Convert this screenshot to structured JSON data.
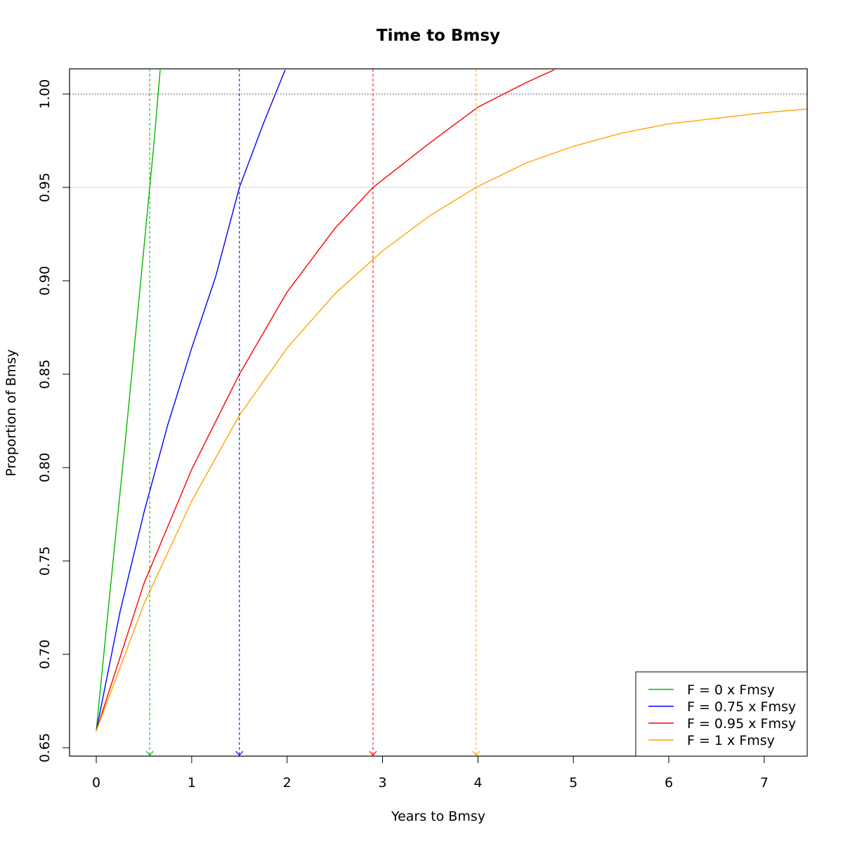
{
  "chart_data": {
    "type": "line",
    "title": "Time to Bmsy",
    "xlabel": "Years to Bmsy",
    "ylabel": "Proportion of Bmsy",
    "xlim": [
      -0.28,
      7.45
    ],
    "ylim": [
      0.6455,
      1.0135
    ],
    "x_ticks": [
      0,
      1,
      2,
      3,
      4,
      5,
      6,
      7
    ],
    "x_tick_labels": [
      "0",
      "1",
      "2",
      "3",
      "4",
      "5",
      "6",
      "7"
    ],
    "y_ticks": [
      0.65,
      0.7,
      0.75,
      0.8,
      0.85,
      0.9,
      0.95,
      1.0
    ],
    "y_tick_labels": [
      "0.65",
      "0.70",
      "0.75",
      "0.80",
      "0.85",
      "0.90",
      "0.95",
      "1.00"
    ],
    "grid": false,
    "reference_lines": [
      {
        "y": 1.0,
        "color": "#666666",
        "style": "dotted"
      },
      {
        "y": 0.95,
        "color": "#d3d3d3",
        "style": "solid"
      }
    ],
    "legend_position": "bottom-right",
    "series": [
      {
        "name": "F = 0 x Fmsy",
        "color": "#00bb00",
        "time_to_95": 0.56,
        "points": [
          [
            0,
            0.659
          ],
          [
            0.1,
            0.711
          ],
          [
            0.2,
            0.762
          ],
          [
            0.3,
            0.812
          ],
          [
            0.4,
            0.865
          ],
          [
            0.5,
            0.918
          ],
          [
            0.56,
            0.95
          ],
          [
            0.6,
            0.971
          ],
          [
            0.67,
            1.013
          ]
        ]
      },
      {
        "name": "F = 0.75 x Fmsy",
        "color": "#0000ff",
        "time_to_95": 1.5,
        "points": [
          [
            0,
            0.659
          ],
          [
            0.25,
            0.723
          ],
          [
            0.5,
            0.776
          ],
          [
            0.75,
            0.823
          ],
          [
            1.0,
            0.864
          ],
          [
            1.25,
            0.902
          ],
          [
            1.5,
            0.95
          ],
          [
            1.75,
            0.984
          ],
          [
            1.98,
            1.013
          ]
        ]
      },
      {
        "name": "F = 0.95 x Fmsy",
        "color": "#ff0000",
        "time_to_95": 2.9,
        "points": [
          [
            0,
            0.659
          ],
          [
            0.5,
            0.738
          ],
          [
            1.0,
            0.799
          ],
          [
            1.5,
            0.85
          ],
          [
            2.0,
            0.894
          ],
          [
            2.5,
            0.928
          ],
          [
            2.9,
            0.95
          ],
          [
            3.5,
            0.974
          ],
          [
            4.0,
            0.993
          ],
          [
            4.5,
            1.006
          ],
          [
            4.8,
            1.013
          ]
        ]
      },
      {
        "name": "F = 1 x Fmsy",
        "color": "#ffa500",
        "time_to_95": 3.98,
        "points": [
          [
            0,
            0.659
          ],
          [
            0.5,
            0.727
          ],
          [
            1.0,
            0.782
          ],
          [
            1.5,
            0.828
          ],
          [
            2.0,
            0.864
          ],
          [
            2.5,
            0.893
          ],
          [
            3.0,
            0.916
          ],
          [
            3.5,
            0.935
          ],
          [
            3.98,
            0.95
          ],
          [
            4.5,
            0.963
          ],
          [
            5.0,
            0.972
          ],
          [
            5.5,
            0.979
          ],
          [
            6.0,
            0.984
          ],
          [
            6.5,
            0.987
          ],
          [
            7.0,
            0.99
          ],
          [
            7.45,
            0.992
          ]
        ]
      }
    ]
  }
}
